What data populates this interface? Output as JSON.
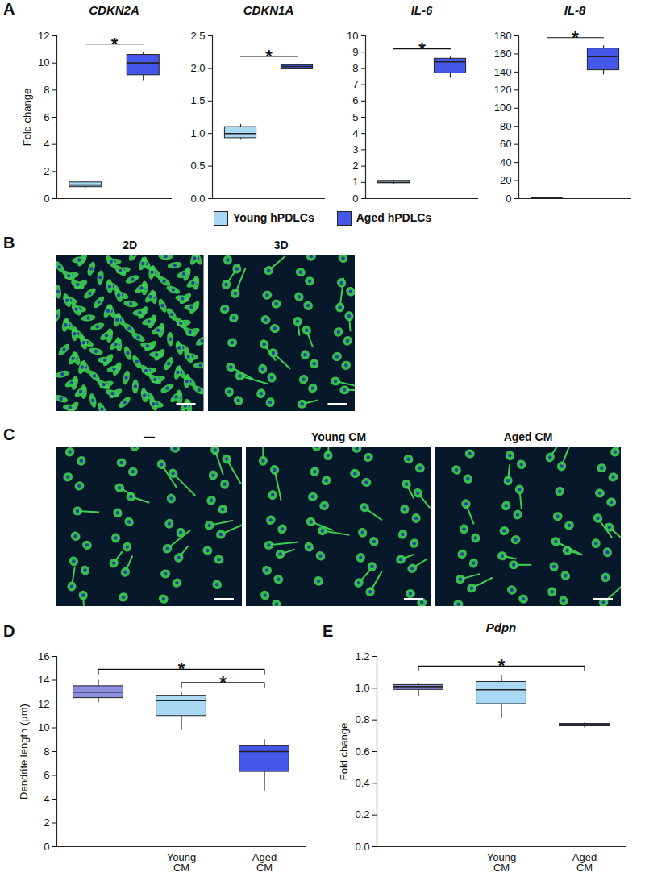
{
  "chart_data": [
    {
      "panel": "A",
      "type": "box",
      "title": "CDKN2A",
      "ylabel": "Fold change",
      "categories": [
        "Young hPDLCs",
        "Aged hPDLCs"
      ],
      "colors": [
        "#a9d8f5",
        "#4557e8"
      ],
      "boxes": [
        {
          "min": 0.8,
          "q1": 0.85,
          "median": 1.0,
          "q3": 1.2,
          "max": 1.3
        },
        {
          "min": 8.7,
          "q1": 9.1,
          "median": 10.0,
          "q3": 10.6,
          "max": 10.8
        }
      ],
      "ylim": [
        0,
        12
      ],
      "yticks": [
        0,
        2,
        4,
        6,
        8,
        10,
        12
      ],
      "tick_labels": "y",
      "legend": "bottom",
      "annotations": [
        {
          "text": "*",
          "between": [
            0,
            1
          ]
        }
      ]
    },
    {
      "type": "box",
      "title": "CDKN1A",
      "categories": [
        "Young hPDLCs",
        "Aged hPDLCs"
      ],
      "colors": [
        "#a9d8f5",
        "#4557e8"
      ],
      "boxes": [
        {
          "min": 0.9,
          "q1": 0.93,
          "median": 1.0,
          "q3": 1.1,
          "max": 1.14
        },
        {
          "min": 2.0,
          "q1": 2.0,
          "median": 2.03,
          "q3": 2.05,
          "max": 2.06
        }
      ],
      "ylim": [
        0,
        2.5
      ],
      "yticks": [
        {
          "value": 0,
          "label": "0.0"
        },
        0.5,
        {
          "value": 1,
          "label": "1.0"
        },
        1.5,
        {
          "value": 2,
          "label": "2.0"
        },
        2.5
      ],
      "tick_labels": "y",
      "annotations": [
        {
          "text": "*",
          "between": [
            0,
            1
          ]
        }
      ]
    },
    {
      "type": "box",
      "title": "IL-6",
      "categories": [
        "Young hPDLCs",
        "Aged hPDLCs"
      ],
      "colors": [
        "#a9d8f5",
        "#4557e8"
      ],
      "boxes": [
        {
          "min": 0.9,
          "q1": 0.95,
          "median": 1.0,
          "q3": 1.1,
          "max": 1.15
        },
        {
          "min": 7.4,
          "q1": 7.7,
          "median": 8.4,
          "q3": 8.6,
          "max": 8.7
        }
      ],
      "ylim": [
        0,
        10
      ],
      "yticks": [
        0,
        1,
        2,
        3,
        4,
        5,
        6,
        7,
        8,
        9,
        10
      ],
      "tick_labels": "y",
      "annotations": [
        {
          "text": "*",
          "between": [
            0,
            1
          ]
        }
      ]
    },
    {
      "type": "box",
      "title": "IL-8",
      "categories": [
        "Young hPDLCs",
        "Aged hPDLCs"
      ],
      "colors": [
        "#a9d8f5",
        "#4557e8"
      ],
      "boxes": [
        {
          "min": 0.8,
          "q1": 0.9,
          "median": 1.0,
          "q3": 1.1,
          "max": 1.2
        },
        {
          "min": 137,
          "q1": 142,
          "median": 157,
          "q3": 166,
          "max": 169
        }
      ],
      "ylim": [
        0,
        180
      ],
      "yticks": [
        0,
        20,
        40,
        60,
        80,
        100,
        120,
        140,
        160,
        180
      ],
      "tick_labels": "y",
      "annotations": [
        {
          "text": "*",
          "between": [
            0,
            1
          ]
        }
      ]
    },
    {
      "panel": "B",
      "type": "image",
      "titles": [
        "2D",
        "3D"
      ]
    },
    {
      "panel": "C",
      "type": "image",
      "titles": [
        "—",
        "Young CM",
        "Aged CM"
      ]
    },
    {
      "panel": "D",
      "type": "box",
      "ylabel": "Dendrite length (µm)",
      "categories": [
        "—",
        "Young CM",
        "Aged CM"
      ],
      "colors": [
        "#8b8fe0",
        "#a9d8f5",
        "#4557e8"
      ],
      "boxes": [
        {
          "min": 12.1,
          "q1": 12.5,
          "median": 13.0,
          "q3": 13.5,
          "max": 14.0
        },
        {
          "min": 9.8,
          "q1": 11.0,
          "median": 12.3,
          "q3": 12.7,
          "max": 13.0
        },
        {
          "min": 4.7,
          "q1": 6.3,
          "median": 8.0,
          "q3": 8.5,
          "max": 9.0
        }
      ],
      "ylim": [
        0,
        16
      ],
      "yticks": [
        0,
        2,
        4,
        6,
        8,
        10,
        12,
        14,
        16
      ],
      "annotations": [
        {
          "text": "*",
          "between": [
            0,
            2
          ]
        },
        {
          "text": "*",
          "between": [
            1,
            2
          ]
        }
      ]
    },
    {
      "panel": "E",
      "type": "box",
      "title": "Pdpn",
      "ylabel": "Fold change",
      "categories": [
        "—",
        "Young CM",
        "Aged CM"
      ],
      "colors": [
        "#8b8fe0",
        "#a9d8f5",
        "#4557e8"
      ],
      "boxes": [
        {
          "min": 0.95,
          "q1": 0.99,
          "median": 1.01,
          "q3": 1.02,
          "max": 1.03
        },
        {
          "min": 0.81,
          "q1": 0.9,
          "median": 0.99,
          "q3": 1.04,
          "max": 1.08
        },
        {
          "min": 0.75,
          "q1": 0.76,
          "median": 0.77,
          "q3": 0.775,
          "max": 0.78
        }
      ],
      "ylim": [
        0,
        1.2
      ],
      "yticks": [
        {
          "value": 0,
          "label": "0.0"
        },
        0.2,
        0.4,
        0.6,
        0.8,
        {
          "value": 1,
          "label": "1.0"
        },
        1.2
      ],
      "annotations": [
        {
          "text": "*",
          "between": [
            0,
            2
          ]
        }
      ]
    }
  ]
}
